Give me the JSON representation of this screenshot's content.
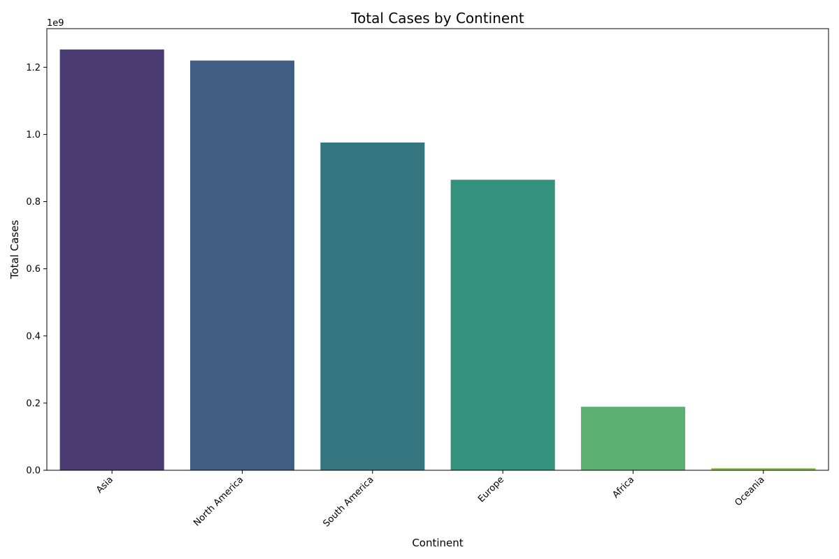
{
  "chart_data": {
    "type": "bar",
    "title": "Total Cases by Continent",
    "xlabel": "Continent",
    "ylabel": "Total Cases",
    "y_offset_label": "1e9",
    "categories": [
      "Asia",
      "North America",
      "South America",
      "Europe",
      "Africa",
      "Oceania"
    ],
    "values": [
      1.253,
      1.22,
      0.976,
      0.865,
      0.189,
      0.006
    ],
    "value_scale": 1000000000,
    "colors": [
      "#4a3b72",
      "#415e82",
      "#357680",
      "#33917d",
      "#5bb071",
      "#8bbf4a"
    ],
    "yticks": [
      0.0,
      0.2,
      0.4,
      0.6,
      0.8,
      1.0,
      1.2
    ],
    "ytick_labels": [
      "0.0",
      "0.2",
      "0.4",
      "0.6",
      "0.8",
      "1.0",
      "1.2"
    ],
    "ylim": [
      0,
      1.315
    ],
    "grid": false,
    "legend": "none"
  }
}
